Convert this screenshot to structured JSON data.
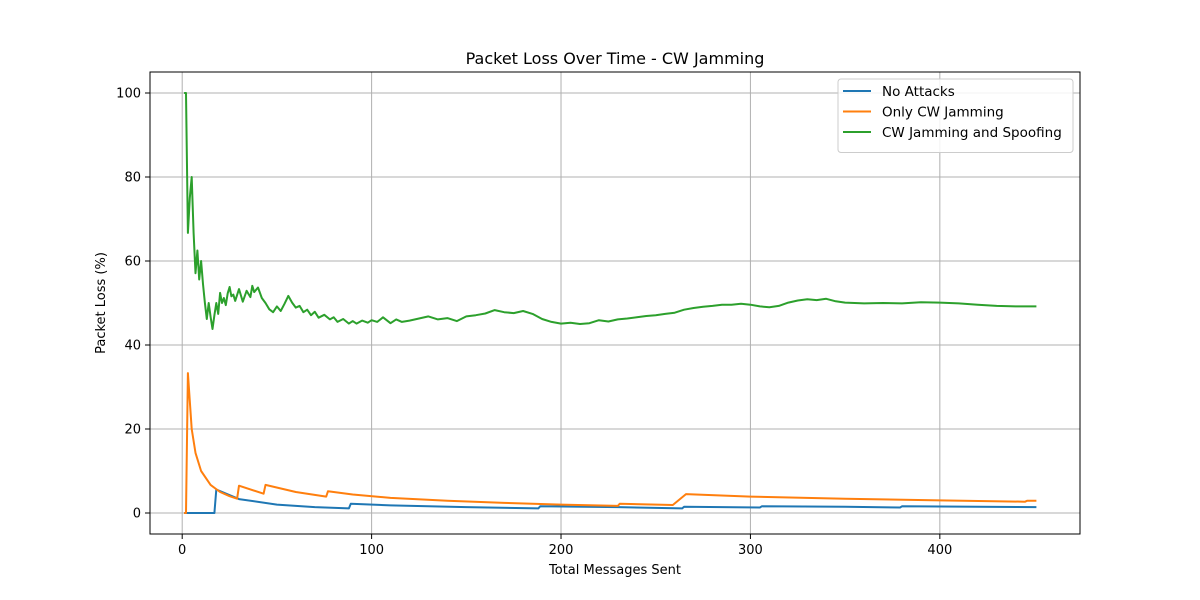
{
  "chart_data": {
    "type": "line",
    "title": "Packet Loss Over Time - CW Jamming",
    "xlabel": "Total Messages Sent",
    "ylabel": "Packet Loss (%)",
    "xlim": [
      -17,
      474
    ],
    "ylim": [
      -5,
      105
    ],
    "xticks": [
      0,
      100,
      200,
      300,
      400
    ],
    "yticks": [
      0,
      20,
      40,
      60,
      80,
      100
    ],
    "grid": true,
    "legend_position": "top-right",
    "series": [
      {
        "name": "No Attacks",
        "color": "#1f77b4",
        "x": [
          1,
          17,
          18,
          30,
          50,
          70,
          88,
          89,
          110,
          150,
          188,
          189,
          230,
          264,
          265,
          305,
          306,
          350,
          379,
          380,
          420,
          451
        ],
        "y": [
          0,
          0,
          5.6,
          3.3,
          2.0,
          1.4,
          1.1,
          2.2,
          1.8,
          1.4,
          1.1,
          1.6,
          1.4,
          1.1,
          1.5,
          1.3,
          1.6,
          1.5,
          1.3,
          1.6,
          1.5,
          1.4
        ]
      },
      {
        "name": "Only CW Jamming",
        "color": "#ff7f0e",
        "x": [
          1,
          2,
          3,
          5,
          7,
          10,
          15,
          20,
          25,
          29,
          30,
          43,
          44,
          60,
          76,
          77,
          90,
          110,
          140,
          170,
          200,
          230,
          231,
          259,
          266,
          300,
          350,
          400,
          445,
          446,
          451
        ],
        "y": [
          0,
          0,
          33.3,
          20,
          14.3,
          10,
          6.7,
          5.0,
          4.0,
          3.4,
          6.5,
          4.6,
          6.7,
          5.0,
          3.9,
          5.2,
          4.4,
          3.6,
          2.9,
          2.4,
          2.0,
          1.7,
          2.2,
          1.9,
          4.5,
          3.9,
          3.4,
          3.0,
          2.7,
          2.9,
          2.9
        ]
      },
      {
        "name": "CW Jamming and Spoofing",
        "color": "#2ca02c",
        "x": [
          1,
          2,
          3,
          4,
          5,
          6,
          7,
          8,
          9,
          10,
          11,
          12,
          13,
          14,
          15,
          16,
          17,
          18,
          19,
          20,
          21,
          22,
          23,
          24,
          25,
          26,
          27,
          28,
          30,
          32,
          34,
          36,
          37,
          38,
          40,
          42,
          44,
          46,
          48,
          50,
          52,
          54,
          56,
          58,
          60,
          62,
          64,
          66,
          68,
          70,
          72,
          75,
          78,
          80,
          82,
          85,
          88,
          90,
          92,
          95,
          98,
          100,
          103,
          106,
          110,
          113,
          116,
          120,
          125,
          130,
          135,
          140,
          145,
          150,
          155,
          160,
          165,
          170,
          175,
          180,
          185,
          190,
          195,
          200,
          205,
          210,
          215,
          220,
          225,
          230,
          235,
          240,
          245,
          250,
          255,
          260,
          265,
          270,
          275,
          280,
          285,
          290,
          295,
          300,
          305,
          310,
          315,
          320,
          325,
          330,
          335,
          340,
          345,
          350,
          360,
          370,
          380,
          390,
          400,
          410,
          420,
          430,
          440,
          451
        ],
        "y": [
          100,
          100,
          66.7,
          75,
          80,
          66.7,
          57.1,
          62.5,
          55.6,
          60,
          54.5,
          50,
          46.2,
          50,
          46.7,
          43.8,
          47.1,
          50,
          47.4,
          52.4,
          50,
          51.2,
          49.5,
          52.3,
          53.8,
          51.6,
          52,
          50.5,
          53.3,
          50.3,
          52.9,
          51.4,
          54.1,
          52.6,
          53.7,
          51.2,
          50,
          48.5,
          47.8,
          49.2,
          48.1,
          49.8,
          51.7,
          50.1,
          48.9,
          49.3,
          47.8,
          48.4,
          47.1,
          47.9,
          46.5,
          47.2,
          46.1,
          46.6,
          45.5,
          46.2,
          45.1,
          45.7,
          45.1,
          45.8,
          45.3,
          45.9,
          45.5,
          46.6,
          45.2,
          46.1,
          45.5,
          45.8,
          46.3,
          46.8,
          46.1,
          46.4,
          45.7,
          46.8,
          47.1,
          47.5,
          48.3,
          47.8,
          47.6,
          48.1,
          47.4,
          46.2,
          45.5,
          45.1,
          45.3,
          45.0,
          45.2,
          45.9,
          45.6,
          46.1,
          46.3,
          46.6,
          46.9,
          47.1,
          47.4,
          47.7,
          48.4,
          48.8,
          49.1,
          49.3,
          49.6,
          49.6,
          49.8,
          49.6,
          49.2,
          49.0,
          49.3,
          50.1,
          50.6,
          50.9,
          50.7,
          51.0,
          50.4,
          50.1,
          49.9,
          50.0,
          49.9,
          50.2,
          50.1,
          49.9,
          49.6,
          49.3,
          49.2,
          49.2
        ]
      }
    ]
  }
}
